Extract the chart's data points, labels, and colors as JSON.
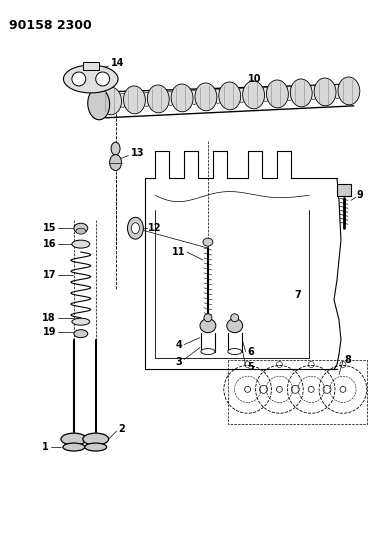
{
  "title": "90158 2300",
  "bg_color": "#ffffff",
  "line_color": "#000000",
  "title_fontsize": 10,
  "label_fontsize": 7,
  "fig_width": 3.91,
  "fig_height": 5.33,
  "dpi": 100
}
